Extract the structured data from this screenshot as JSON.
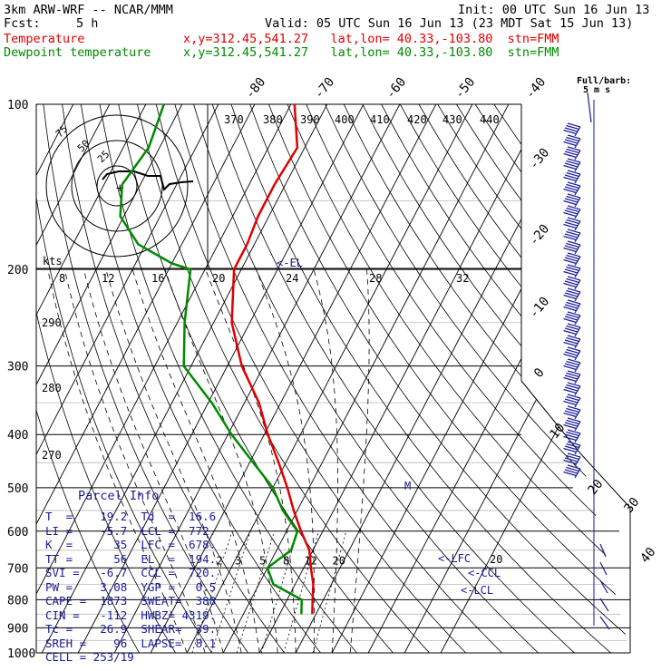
{
  "header": {
    "model": "3km ARW-WRF -- NCAR/MMM",
    "init": "Init: 00 UTC Sun 16 Jun 13",
    "fcst_label": "Fcst:",
    "fcst_value": "5 h",
    "valid": "Valid: 05 UTC Sun 16 Jun 13 (23 MDT Sat 15 Jun 13)",
    "temperature_name": "Temperature",
    "temperature_info": "x,y=312.45,541.27   lat,lon= 40.33,-103.80  stn=FMM",
    "dewpoint_name": "Dewpoint temperature",
    "dewpoint_info": "x,y=312.45,541.27   lat,lon= 40.33,-103.80  stn=FMM",
    "barb_legend_1": "Full/barb:",
    "barb_legend_2": "5 m s"
  },
  "parcel_info": {
    "title": "Parcel Info",
    "rows": [
      "T  =    19.2  Td  =  16.6",
      "LI =    -5.7  LCL =  772.",
      "K  =      35  LFC =  678.",
      "TT =      56  EL  =  194.",
      "SVI =   -6.7  CCL =  720.",
      "PW =    3.08  YGP =   0.5",
      "CAPE =  1873  SWEAT=  388",
      "CIN =   -112  HWBZ= 4319.",
      "Tc =    26.9  SHEAR=  39.",
      "SREH =    96  LAPSE=  8.1",
      "CELL = 253/19"
    ]
  },
  "chart_data": [
    {
      "type": "line",
      "subtype": "skew-T log-P",
      "ylabel": "",
      "pressure_levels": [
        100,
        200,
        300,
        400,
        500,
        600,
        700,
        800,
        900,
        1000
      ],
      "yscale": "log (inverted)",
      "temperature_label_values": [
        -80,
        -70,
        -60,
        -50,
        -40,
        -30,
        -20,
        -10,
        0,
        10,
        20,
        30,
        40
      ],
      "theta_labels": [
        370,
        380,
        390,
        400,
        410,
        420,
        430,
        440
      ],
      "theta_labels_left": [
        290,
        280,
        270
      ],
      "mixing_ratio_labels": [
        2,
        3,
        5,
        8,
        12,
        20
      ],
      "annotations": [
        "<-EL",
        "<-LFC",
        "<-CCL",
        "<-LCL",
        "M"
      ],
      "series": [
        {
          "name": "Temperature",
          "color": "#e00000",
          "points": [
            [
              100,
              -59
            ],
            [
              120,
              -52
            ],
            [
              140,
              -53
            ],
            [
              160,
              -53
            ],
            [
              180,
              -52
            ],
            [
              200,
              -52
            ],
            [
              250,
              -45
            ],
            [
              300,
              -36
            ],
            [
              350,
              -26
            ],
            [
              400,
              -19
            ],
            [
              450,
              -12
            ],
            [
              500,
              -6
            ],
            [
              550,
              -1
            ],
            [
              600,
              4
            ],
            [
              650,
              9
            ],
            [
              700,
              12
            ],
            [
              750,
              15
            ],
            [
              800,
              17
            ],
            [
              850,
              19
            ]
          ],
          "color_name": "red"
        },
        {
          "name": "Dewpoint temperature",
          "color": "#008a00",
          "points": [
            [
              100,
              -95
            ],
            [
              120,
              -93
            ],
            [
              140,
              -95
            ],
            [
              160,
              -91
            ],
            [
              180,
              -82
            ],
            [
              195,
              -70
            ],
            [
              200,
              -64
            ],
            [
              250,
              -58
            ],
            [
              300,
              -52
            ],
            [
              350,
              -39
            ],
            [
              400,
              -29
            ],
            [
              450,
              -19
            ],
            [
              500,
              -10
            ],
            [
              550,
              -4
            ],
            [
              600,
              3
            ],
            [
              650,
              4
            ],
            [
              700,
              0
            ],
            [
              750,
              4
            ],
            [
              800,
              14
            ],
            [
              850,
              16
            ]
          ],
          "color_name": "green"
        }
      ],
      "wind_barbs": "right side, 100-870 hPa"
    },
    {
      "type": "scatter",
      "subtype": "hodograph",
      "xlabel": "kts",
      "ring_labels": [
        25,
        50,
        75
      ],
      "speed_scale_labels": [
        8,
        12,
        16,
        20,
        24,
        28,
        32
      ],
      "color": "#000000"
    }
  ]
}
